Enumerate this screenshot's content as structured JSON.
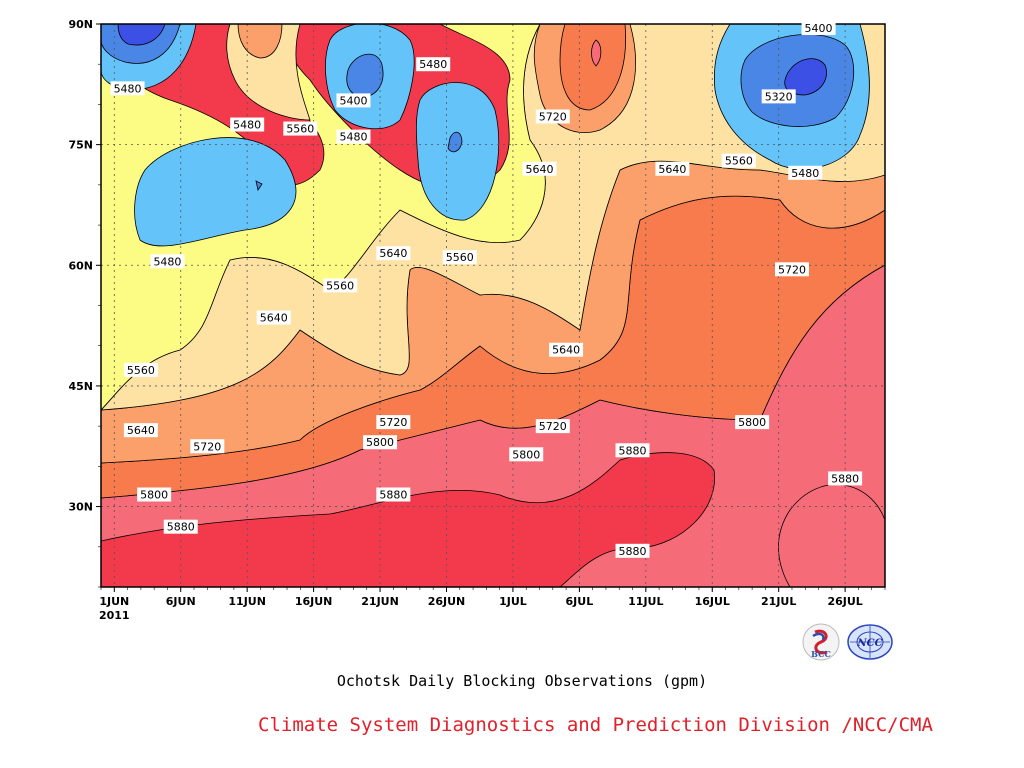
{
  "chart_data": {
    "type": "contour",
    "title": "Ochotsk Daily Blocking Observations (gpm)",
    "x_ticks": [
      "1JUN",
      "6JUN",
      "11JUN",
      "16JUN",
      "21JUN",
      "26JUN",
      "1JUL",
      "6JUL",
      "11JUL",
      "16JUL",
      "21JUL",
      "26JUL"
    ],
    "x_year": "2011",
    "y_ticks": [
      "90N",
      "75N",
      "60N",
      "45N",
      "30N"
    ],
    "x_range": [
      "2011-05-31",
      "2011-07-29"
    ],
    "y_range": [
      20,
      90
    ],
    "contour_levels": [
      5320,
      5400,
      5480,
      5560,
      5640,
      5720,
      5800,
      5880
    ],
    "contour_labels": [
      {
        "text": "5400",
        "x": "2011-07-24",
        "y": 89.5
      },
      {
        "text": "5480",
        "x": "2011-06-02",
        "y": 82
      },
      {
        "text": "5480",
        "x": "2011-06-25",
        "y": 85
      },
      {
        "text": "5400",
        "x": "2011-06-19",
        "y": 80.5
      },
      {
        "text": "5320",
        "x": "2011-07-21",
        "y": 81
      },
      {
        "text": "5720",
        "x": "2011-07-04",
        "y": 78.5
      },
      {
        "text": "5480",
        "x": "2011-06-11",
        "y": 77.5
      },
      {
        "text": "5560",
        "x": "2011-06-15",
        "y": 77
      },
      {
        "text": "5480",
        "x": "2011-06-19",
        "y": 76
      },
      {
        "text": "5560",
        "x": "2011-07-18",
        "y": 73
      },
      {
        "text": "5640",
        "x": "2011-07-03",
        "y": 72
      },
      {
        "text": "5640",
        "x": "2011-07-13",
        "y": 72
      },
      {
        "text": "5480",
        "x": "2011-07-23",
        "y": 71.5
      },
      {
        "text": "5480",
        "x": "2011-06-05",
        "y": 60.5
      },
      {
        "text": "5640",
        "x": "2011-06-22",
        "y": 61.5
      },
      {
        "text": "5560",
        "x": "2011-06-27",
        "y": 61
      },
      {
        "text": "5720",
        "x": "2011-07-22",
        "y": 59.5
      },
      {
        "text": "5560",
        "x": "2011-06-18",
        "y": 57.5
      },
      {
        "text": "5640",
        "x": "2011-06-13",
        "y": 53.5
      },
      {
        "text": "5640",
        "x": "2011-07-05",
        "y": 49.5
      },
      {
        "text": "5560",
        "x": "2011-06-03",
        "y": 47
      },
      {
        "text": "5720",
        "x": "2011-06-22",
        "y": 40.5
      },
      {
        "text": "5720",
        "x": "2011-07-04",
        "y": 40
      },
      {
        "text": "5800",
        "x": "2011-07-19",
        "y": 40.5
      },
      {
        "text": "5640",
        "x": "2011-06-03",
        "y": 39.5
      },
      {
        "text": "5720",
        "x": "2011-06-08",
        "y": 37.5
      },
      {
        "text": "5800",
        "x": "2011-06-21",
        "y": 38
      },
      {
        "text": "5800",
        "x": "2011-07-02",
        "y": 36.5
      },
      {
        "text": "5880",
        "x": "2011-07-10",
        "y": 37
      },
      {
        "text": "5880",
        "x": "2011-07-26",
        "y": 33.5
      },
      {
        "text": "5800",
        "x": "2011-06-04",
        "y": 31.5
      },
      {
        "text": "5880",
        "x": "2011-06-22",
        "y": 31.5
      },
      {
        "text": "5880",
        "x": "2011-06-06",
        "y": 27.5
      },
      {
        "text": "5880",
        "x": "2011-07-10",
        "y": 24.5
      }
    ]
  },
  "footer": {
    "title": "Ochotsk Daily Blocking Observations (gpm)",
    "credit": "Climate System Diagnostics and Prediction Division /NCC/CMA",
    "credit_color": "#e0202a",
    "logos": [
      "BCC",
      "NCC"
    ]
  }
}
